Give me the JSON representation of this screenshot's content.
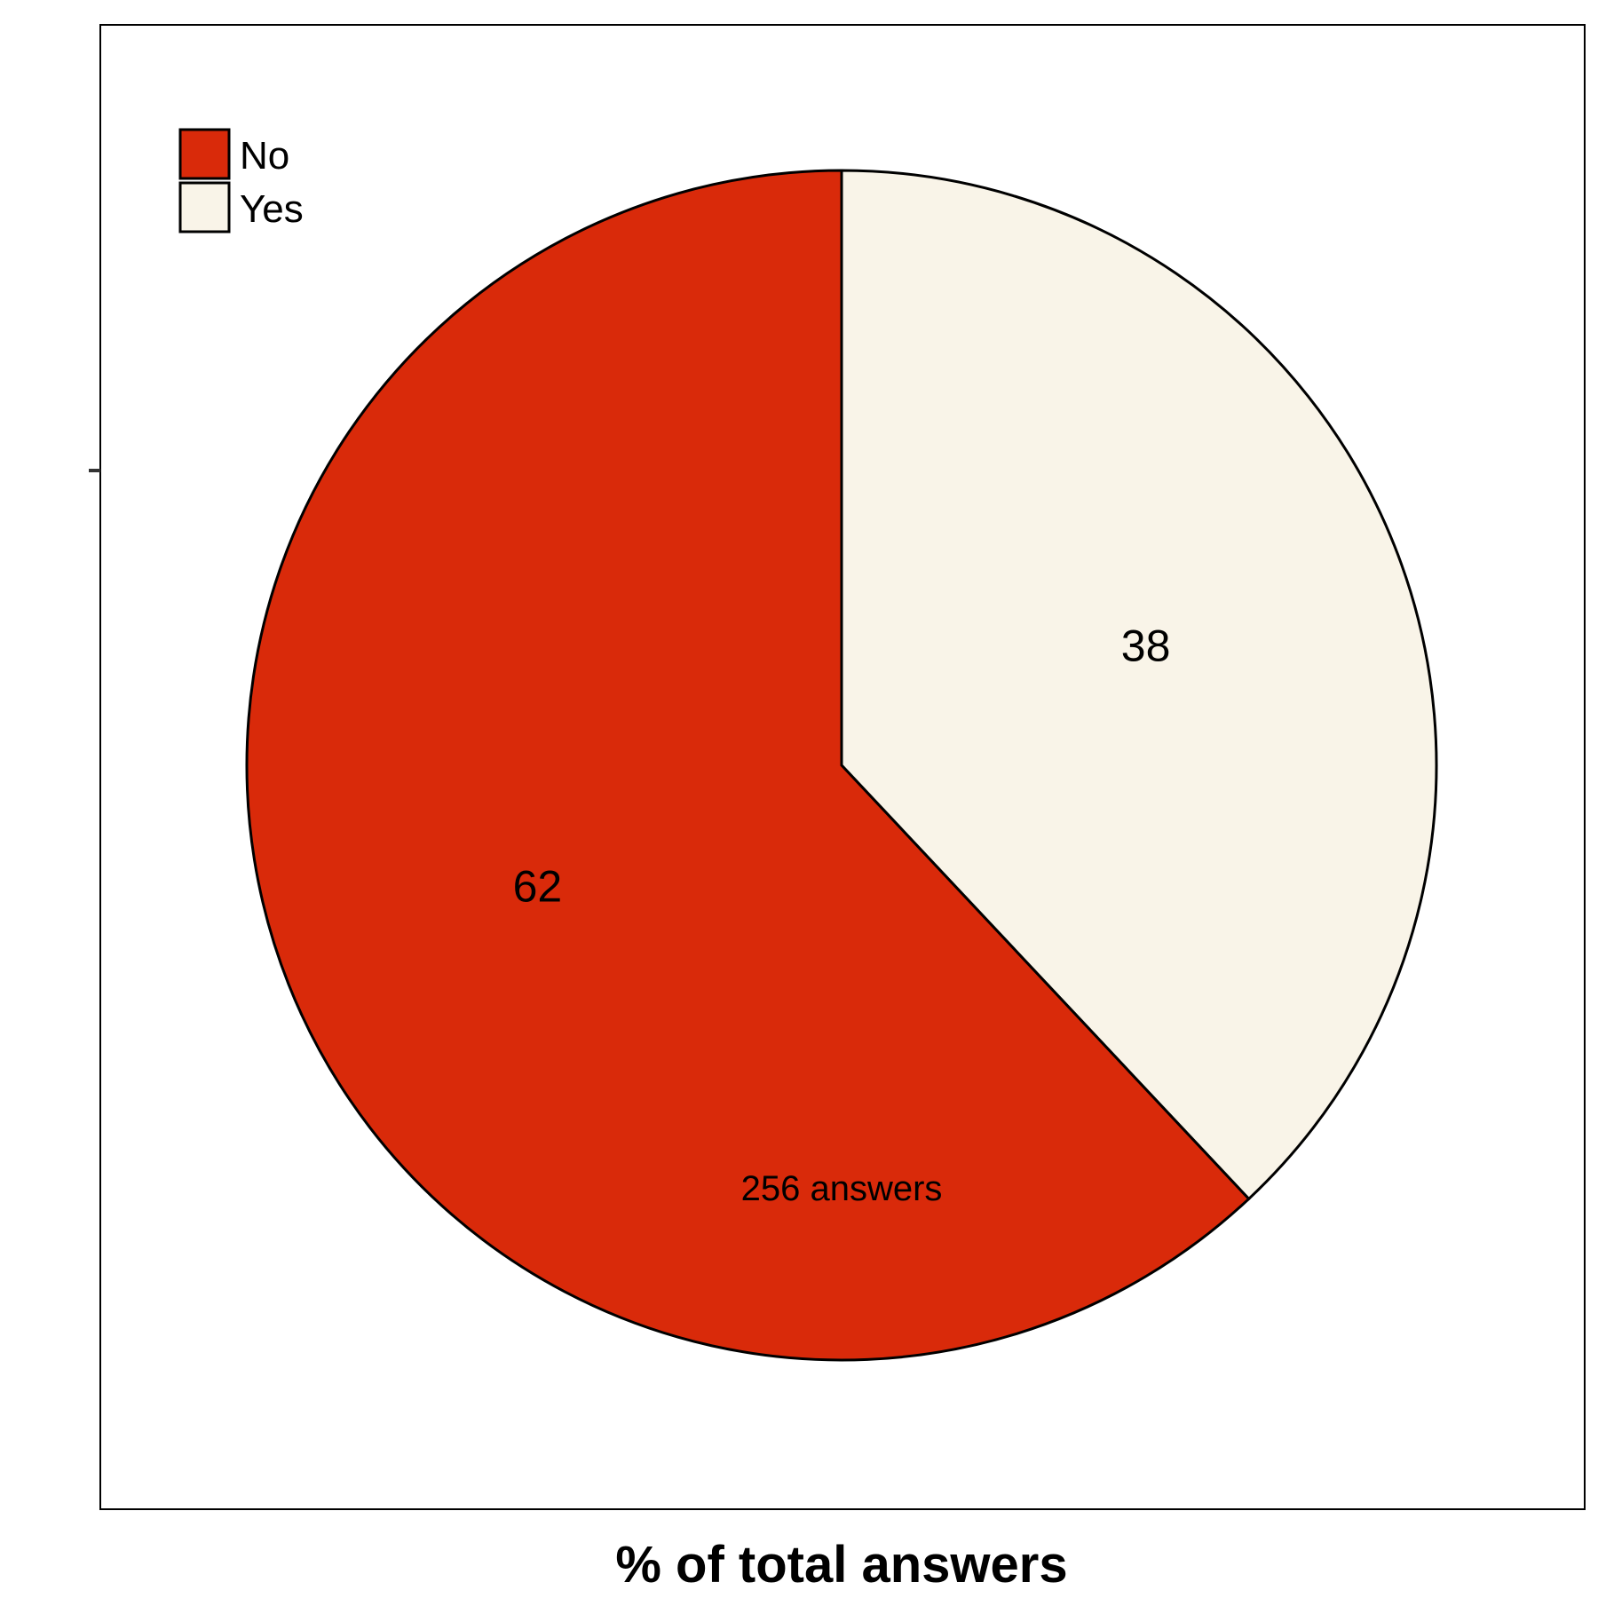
{
  "chart_data": {
    "type": "pie",
    "title": "",
    "xlabel": "% of total answers",
    "ylabel": "",
    "categories": [
      "No",
      "Yes"
    ],
    "values": [
      62,
      38
    ],
    "colors": [
      "#d92a0a",
      "#f9f4e8"
    ],
    "slice_labels": [
      "62",
      "38"
    ],
    "annotation": "256 answers",
    "legend": {
      "position": "top-left",
      "entries": [
        "No",
        "Yes"
      ]
    },
    "grid": false
  }
}
